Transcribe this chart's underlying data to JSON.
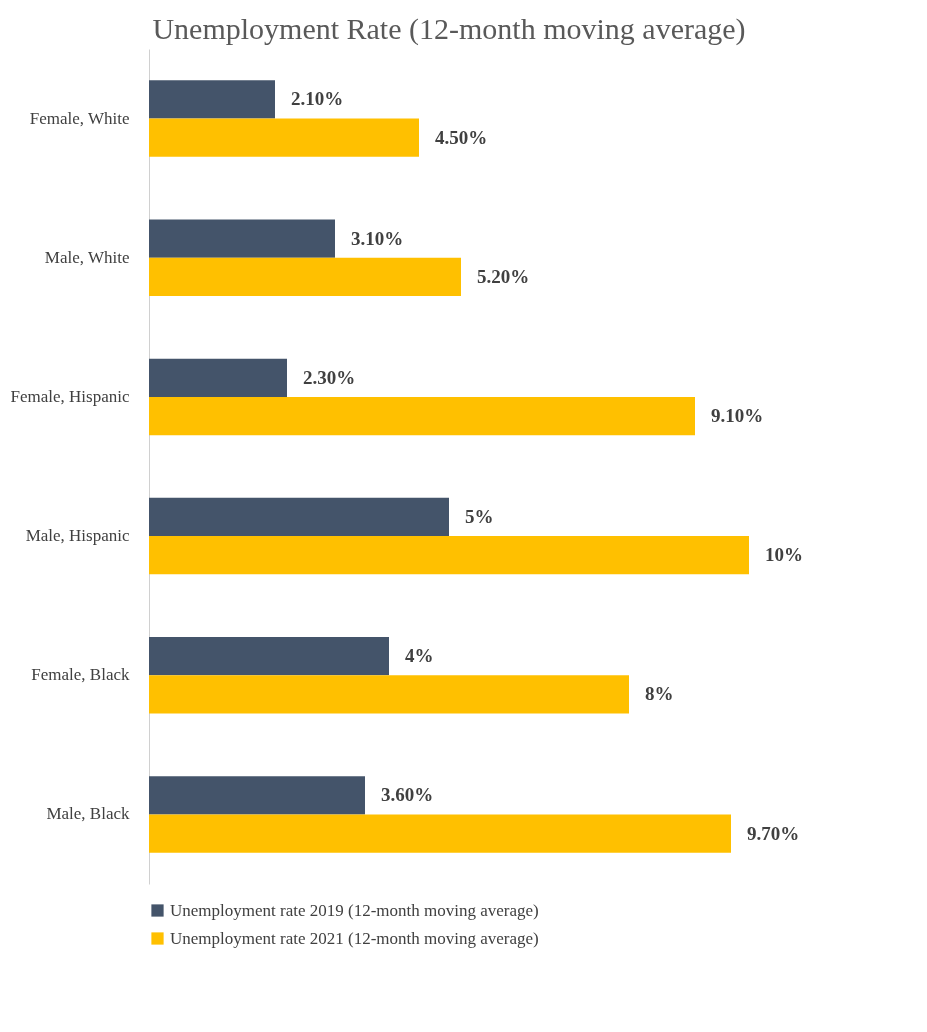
{
  "chart_data": {
    "type": "bar",
    "orientation": "horizontal",
    "title": "Unemployment Rate (12-month moving average)",
    "categories": [
      "Female, White",
      "Male, White",
      "Female, Hispanic",
      "Male, Hispanic",
      "Female, Black",
      "Male, Black"
    ],
    "series": [
      {
        "name": "Unemployment rate 2019 (12-month moving average)",
        "color": "#44546a",
        "values": [
          2.1,
          3.1,
          2.3,
          5,
          4,
          3.6
        ],
        "value_labels": [
          "2.10%",
          "3.10%",
          "2.30%",
          "5%",
          "4%",
          "3.60%"
        ]
      },
      {
        "name": "Unemployment rate 2021 (12-month moving average)",
        "color": "#ffc000",
        "values": [
          4.5,
          5.2,
          9.1,
          10,
          8,
          9.7
        ],
        "value_labels": [
          "4.50%",
          "5.20%",
          "9.10%",
          "10%",
          "8%",
          "9.70%"
        ]
      }
    ],
    "legend": "bottom",
    "grid": false,
    "tick_labels": "y"
  }
}
